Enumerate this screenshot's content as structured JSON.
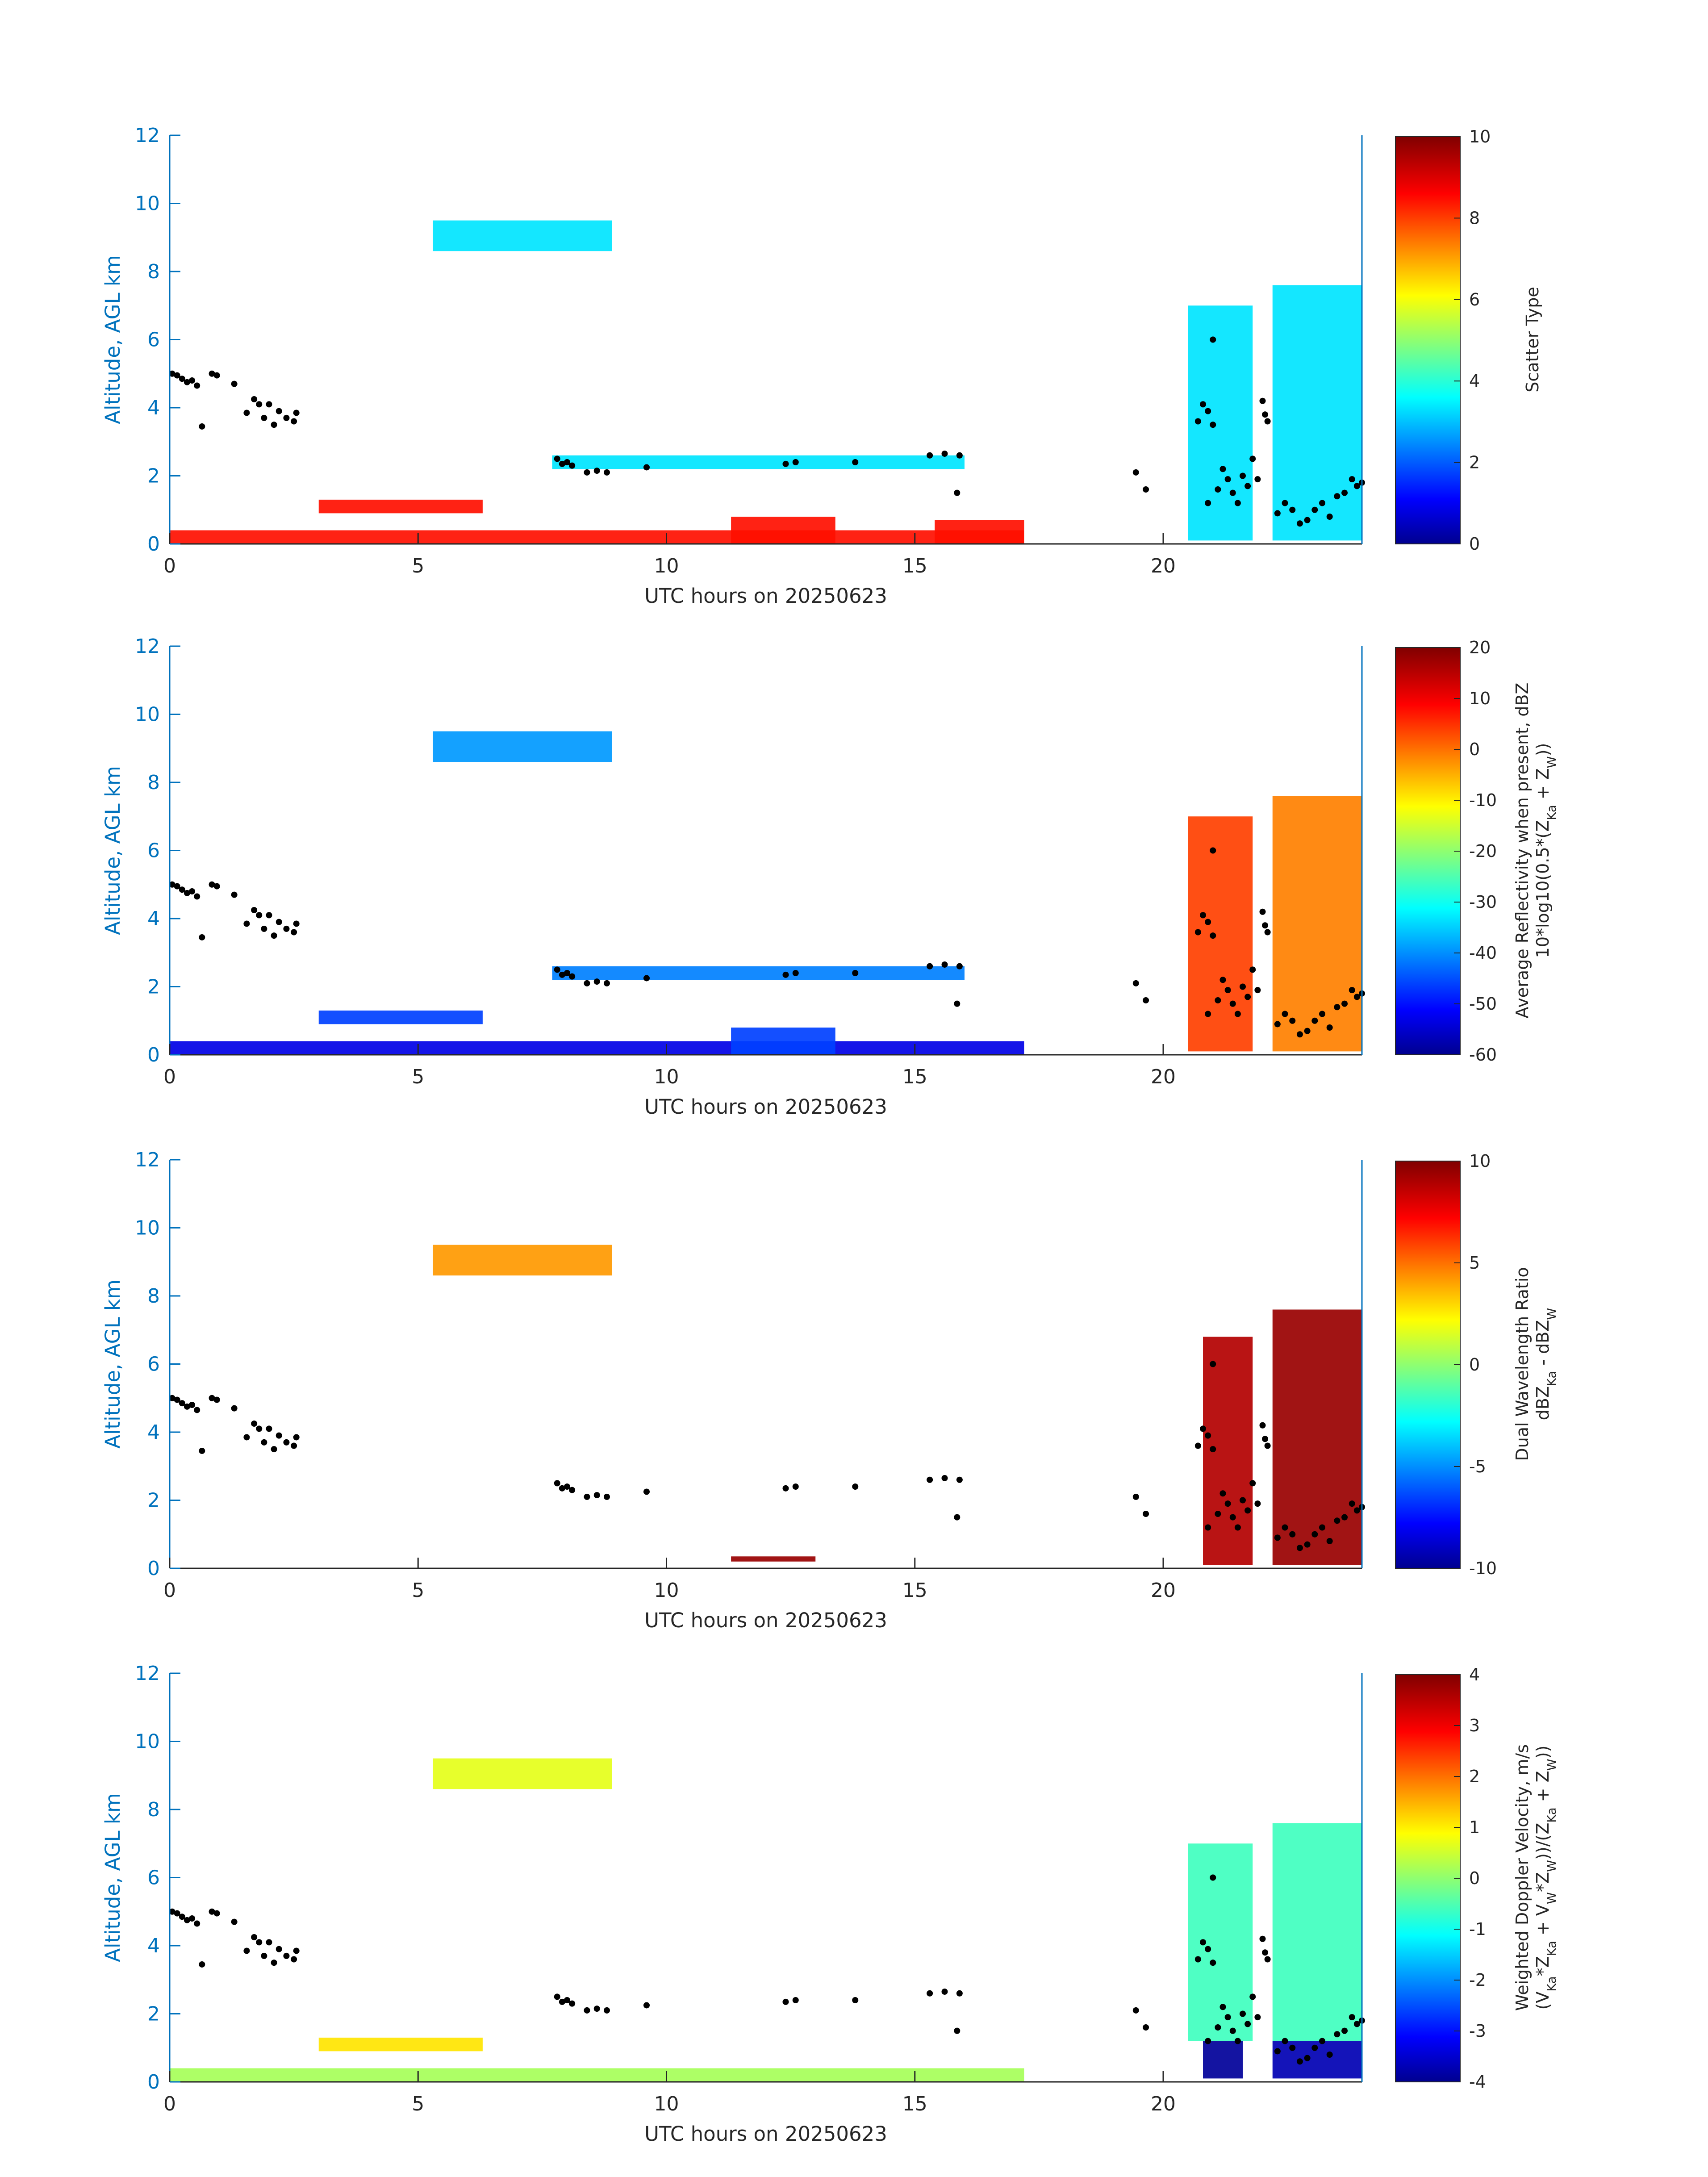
{
  "figure": {
    "date_label": "20250623"
  },
  "chart_data": [
    {
      "type": "heatmap",
      "title": "",
      "xlabel": "UTC hours on 20250623",
      "ylabel": "Altitude, AGL km",
      "xlim": [
        0,
        24
      ],
      "ylim": [
        0,
        12
      ],
      "xticks": [
        0,
        5,
        10,
        15,
        20
      ],
      "yticks": [
        0,
        2,
        4,
        6,
        8,
        10,
        12
      ],
      "colorbar": {
        "label_lines": [
          "Scatter Type"
        ],
        "range": [
          0,
          10
        ],
        "ticks": [
          0,
          2,
          4,
          6,
          8,
          10
        ],
        "colormap": "jet"
      },
      "regions": [
        {
          "name": "cirrus-layer",
          "t0": 5.3,
          "t1": 8.9,
          "z0": 8.6,
          "z1": 9.5,
          "value": 3.5
        },
        {
          "name": "near-surface-clutter",
          "t0": 0.0,
          "t1": 17.2,
          "z0": 0.0,
          "z1": 0.4,
          "value": 8.6
        },
        {
          "name": "low-echo-morning",
          "t0": 3.0,
          "t1": 6.3,
          "z0": 0.9,
          "z1": 1.3,
          "value": 8.6
        },
        {
          "name": "low-echo-midday",
          "t0": 11.3,
          "t1": 13.4,
          "z0": 0.0,
          "z1": 0.8,
          "value": 8.6
        },
        {
          "name": "low-echo-afternoon",
          "t0": 15.4,
          "t1": 17.2,
          "z0": 0.0,
          "z1": 0.7,
          "value": 8.6
        },
        {
          "name": "evening-cloud-a",
          "t0": 20.5,
          "t1": 21.8,
          "z0": 0.1,
          "z1": 7.0,
          "value": 3.5
        },
        {
          "name": "evening-cloud-b",
          "t0": 22.2,
          "t1": 24.0,
          "z0": 0.1,
          "z1": 7.6,
          "value": 3.5
        },
        {
          "name": "boundary-clouds",
          "t0": 7.7,
          "t1": 16.0,
          "z0": 2.2,
          "z1": 2.6,
          "value": 3.5
        }
      ]
    },
    {
      "type": "heatmap",
      "title": "",
      "xlabel": "UTC hours on 20250623",
      "ylabel": "Altitude, AGL km",
      "xlim": [
        0,
        24
      ],
      "ylim": [
        0,
        12
      ],
      "xticks": [
        0,
        5,
        10,
        15,
        20
      ],
      "yticks": [
        0,
        2,
        4,
        6,
        8,
        10,
        12
      ],
      "colorbar": {
        "label_lines": [
          "Average Reflectivity when present, dBZ",
          "10*log10(0.5*(Z_Ka + Z_W))"
        ],
        "range": [
          -60,
          20
        ],
        "ticks": [
          -60,
          -50,
          -40,
          -30,
          -20,
          -10,
          0,
          10,
          20
        ],
        "colormap": "jet"
      },
      "regions": [
        {
          "name": "cirrus-layer",
          "t0": 5.3,
          "t1": 8.9,
          "z0": 8.6,
          "z1": 9.5,
          "value": -38
        },
        {
          "name": "near-surface-clutter",
          "t0": 0.0,
          "t1": 17.2,
          "z0": 0.0,
          "z1": 0.4,
          "value": -52
        },
        {
          "name": "low-echo-morning",
          "t0": 3.0,
          "t1": 6.3,
          "z0": 0.9,
          "z1": 1.3,
          "value": -45
        },
        {
          "name": "low-echo-midday",
          "t0": 11.3,
          "t1": 13.4,
          "z0": 0.0,
          "z1": 0.8,
          "value": -45
        },
        {
          "name": "evening-cloud-a",
          "t0": 20.5,
          "t1": 21.8,
          "z0": 0.1,
          "z1": 7.0,
          "value": 5
        },
        {
          "name": "evening-cloud-b",
          "t0": 22.2,
          "t1": 24.0,
          "z0": 0.1,
          "z1": 7.6,
          "value": 0
        },
        {
          "name": "boundary-clouds",
          "t0": 7.7,
          "t1": 16.0,
          "z0": 2.2,
          "z1": 2.6,
          "value": -40
        }
      ]
    },
    {
      "type": "heatmap",
      "title": "",
      "xlabel": "UTC hours on 20250623",
      "ylabel": "Altitude, AGL km",
      "xlim": [
        0,
        24
      ],
      "ylim": [
        0,
        12
      ],
      "xticks": [
        0,
        5,
        10,
        15,
        20
      ],
      "yticks": [
        0,
        2,
        4,
        6,
        8,
        10,
        12
      ],
      "colorbar": {
        "label_lines": [
          "Dual Wavelength Ratio",
          "dBZ_Ka - dBZ_W"
        ],
        "range": [
          -10,
          10
        ],
        "ticks": [
          -10,
          -5,
          0,
          5,
          10
        ],
        "colormap": "jet"
      },
      "regions": [
        {
          "name": "cirrus-layer",
          "t0": 5.3,
          "t1": 8.9,
          "z0": 8.6,
          "z1": 9.5,
          "value": 4.5
        },
        {
          "name": "surface-dwr",
          "t0": 11.3,
          "t1": 13.0,
          "z0": 0.2,
          "z1": 0.35,
          "value": 9.5
        },
        {
          "name": "evening-cloud-a",
          "t0": 20.8,
          "t1": 21.8,
          "z0": 0.1,
          "z1": 6.8,
          "value": 9
        },
        {
          "name": "evening-cloud-b",
          "t0": 22.2,
          "t1": 24.0,
          "z0": 0.1,
          "z1": 7.6,
          "value": 9.5
        }
      ]
    },
    {
      "type": "heatmap",
      "title": "",
      "xlabel": "UTC hours on 20250623",
      "ylabel": "Altitude, AGL km",
      "xlim": [
        0,
        24
      ],
      "ylim": [
        0,
        12
      ],
      "xticks": [
        0,
        5,
        10,
        15,
        20
      ],
      "yticks": [
        0,
        2,
        4,
        6,
        8,
        10,
        12
      ],
      "colorbar": {
        "label_lines": [
          "Weighted Doppler Velocity, m/s",
          "(V_Ka*Z_Ka + V_W*Z_W))/(Z_Ka + Z_W))"
        ],
        "range": [
          -4,
          4
        ],
        "ticks": [
          -4,
          -3,
          -2,
          -1,
          0,
          1,
          2,
          3,
          4
        ],
        "colormap": "jet"
      },
      "regions": [
        {
          "name": "cirrus-layer",
          "t0": 5.3,
          "t1": 8.9,
          "z0": 8.6,
          "z1": 9.5,
          "value": 0.8
        },
        {
          "name": "near-surface-clutter",
          "t0": 0.0,
          "t1": 17.2,
          "z0": 0.0,
          "z1": 0.4,
          "value": 0.3
        },
        {
          "name": "low-echo-morning",
          "t0": 3.0,
          "t1": 6.3,
          "z0": 0.9,
          "z1": 1.3,
          "value": 1.2
        },
        {
          "name": "evening-cloud-a",
          "t0": 20.5,
          "t1": 21.8,
          "z0": 1.2,
          "z1": 7.0,
          "value": -0.5
        },
        {
          "name": "evening-cloud-a-rain",
          "t0": 20.8,
          "t1": 21.6,
          "z0": 0.1,
          "z1": 1.2,
          "value": -3.8
        },
        {
          "name": "evening-cloud-b",
          "t0": 22.2,
          "t1": 24.0,
          "z0": 1.2,
          "z1": 7.6,
          "value": -0.5
        },
        {
          "name": "evening-cloud-b-rain",
          "t0": 22.2,
          "t1": 24.0,
          "z0": 0.1,
          "z1": 1.2,
          "value": -3.6
        }
      ]
    }
  ],
  "cloud_base_points": [
    [
      0.05,
      5.0
    ],
    [
      0.15,
      4.95
    ],
    [
      0.25,
      4.85
    ],
    [
      0.35,
      4.75
    ],
    [
      0.45,
      4.8
    ],
    [
      0.55,
      4.65
    ],
    [
      0.65,
      3.45
    ],
    [
      0.85,
      5.0
    ],
    [
      0.95,
      4.95
    ],
    [
      1.3,
      4.7
    ],
    [
      1.55,
      3.85
    ],
    [
      1.7,
      4.25
    ],
    [
      1.8,
      4.1
    ],
    [
      1.9,
      3.7
    ],
    [
      2.0,
      4.1
    ],
    [
      2.1,
      3.5
    ],
    [
      2.2,
      3.9
    ],
    [
      2.35,
      3.7
    ],
    [
      2.5,
      3.6
    ],
    [
      2.55,
      3.85
    ],
    [
      7.8,
      2.5
    ],
    [
      7.9,
      2.35
    ],
    [
      8.0,
      2.4
    ],
    [
      8.1,
      2.3
    ],
    [
      8.4,
      2.1
    ],
    [
      8.6,
      2.15
    ],
    [
      8.8,
      2.1
    ],
    [
      9.6,
      2.25
    ],
    [
      12.4,
      2.35
    ],
    [
      12.6,
      2.4
    ],
    [
      13.8,
      2.4
    ],
    [
      15.3,
      2.6
    ],
    [
      15.6,
      2.65
    ],
    [
      15.9,
      2.6
    ],
    [
      15.85,
      1.5
    ],
    [
      19.45,
      2.1
    ],
    [
      19.65,
      1.6
    ],
    [
      20.7,
      3.6
    ],
    [
      20.8,
      4.1
    ],
    [
      20.9,
      3.9
    ],
    [
      21.0,
      3.5
    ],
    [
      21.0,
      6.0
    ],
    [
      20.9,
      1.2
    ],
    [
      21.1,
      1.6
    ],
    [
      21.2,
      2.2
    ],
    [
      21.3,
      1.9
    ],
    [
      21.4,
      1.5
    ],
    [
      21.5,
      1.2
    ],
    [
      21.6,
      2.0
    ],
    [
      21.7,
      1.7
    ],
    [
      21.8,
      2.5
    ],
    [
      21.9,
      1.9
    ],
    [
      22.0,
      4.2
    ],
    [
      22.05,
      3.8
    ],
    [
      22.1,
      3.6
    ],
    [
      22.3,
      0.9
    ],
    [
      22.45,
      1.2
    ],
    [
      22.6,
      1.0
    ],
    [
      22.75,
      0.6
    ],
    [
      22.9,
      0.7
    ],
    [
      23.05,
      1.0
    ],
    [
      23.2,
      1.2
    ],
    [
      23.35,
      0.8
    ],
    [
      23.5,
      1.4
    ],
    [
      23.65,
      1.5
    ],
    [
      23.8,
      1.9
    ],
    [
      23.9,
      1.7
    ],
    [
      24.0,
      1.8
    ]
  ]
}
